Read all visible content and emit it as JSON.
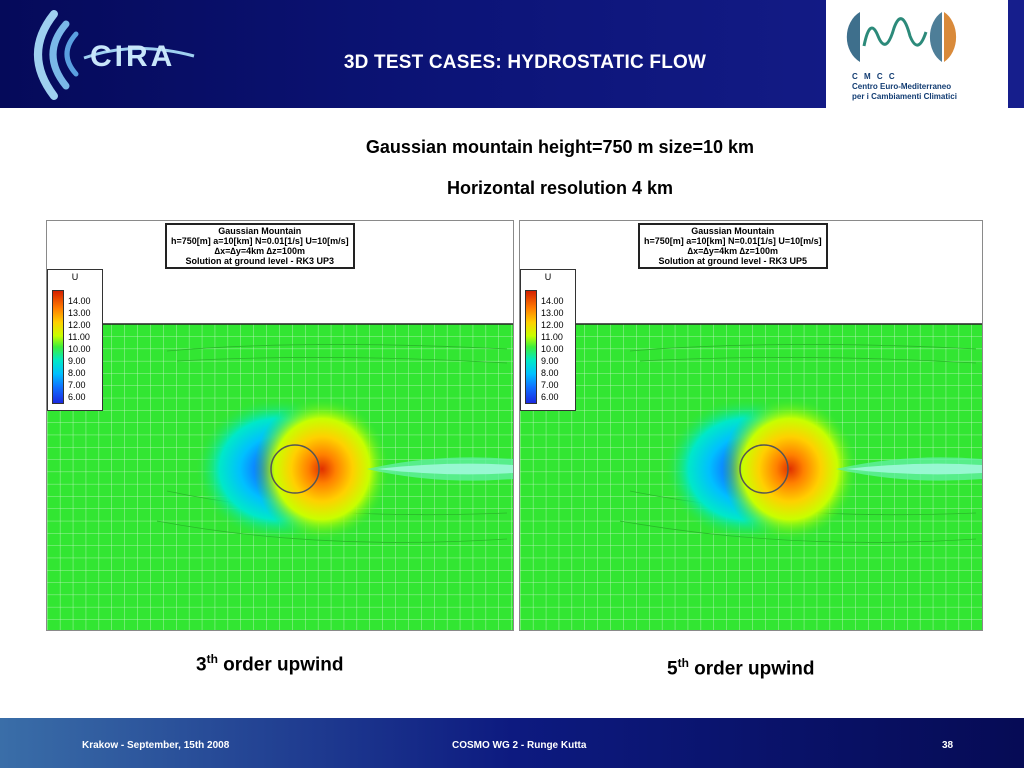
{
  "header": {
    "logo_text": "CIRA",
    "title": "3D TEST CASES:  HYDROSTATIC FLOW",
    "partner_logo": {
      "abbrev": "C M C C",
      "line1": "Centro Euro-Mediterraneo",
      "line2": "per i Cambiamenti Climatici"
    }
  },
  "subtitle1": "Gaussian mountain  height=750 m   size=10 km",
  "subtitle2": "Horizontal resolution 4 km",
  "plots": [
    {
      "box_lines": [
        "Gaussian Mountain",
        "h=750[m]  a=10[km]  N=0.01[1/s]  U=10[m/s]",
        "∆x=∆y=4km   ∆z=100m",
        "Solution at ground level - RK3 UP3"
      ],
      "caption_prefix": "3",
      "caption_sup": "th",
      "caption_rest": " order upwind"
    },
    {
      "box_lines": [
        "Gaussian Mountain",
        "h=750[m]  a=10[km]  N=0.01[1/s]  U=10[m/s]",
        "∆x=∆y=4km   ∆z=100m",
        "Solution at ground level - RK3 UP5"
      ],
      "caption_prefix": "5",
      "caption_sup": "th",
      "caption_rest": " order upwind"
    }
  ],
  "legend": {
    "title": "U",
    "levels": [
      "14.00",
      "13.00",
      "12.00",
      "11.00",
      "10.00",
      "9.00",
      "8.00",
      "7.00",
      "6.00"
    ]
  },
  "colors": {
    "background_field": "#32e632",
    "header_blue": "#0c1478"
  },
  "footer": {
    "left": "Krakow - September, 15th 2008",
    "center": "COSMO WG 2 - Runge Kutta",
    "page": "38"
  }
}
